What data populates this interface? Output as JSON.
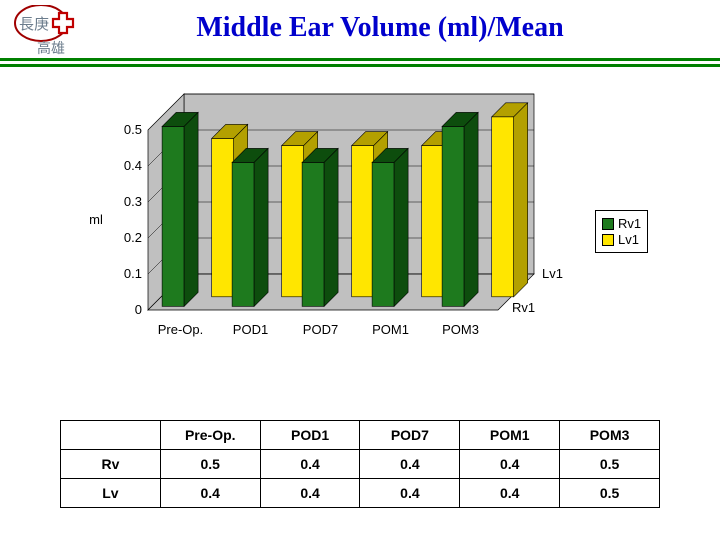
{
  "title": "Middle Ear Volume (ml)/Mean",
  "title_color": "#0000cc",
  "title_fontsize": 28,
  "divider_color": "#008000",
  "logo": {
    "cross_bg": "#ffffff",
    "cross_border": "#a00000",
    "plus_color": "#c00000",
    "text": "高雄",
    "text_color": "#6b7c8c",
    "brand_text": "長庚"
  },
  "chart": {
    "type": "3d-bar",
    "categories": [
      "Pre-Op.",
      "POD1",
      "POD7",
      "POM1",
      "POM3"
    ],
    "series": [
      {
        "name": "Rv1",
        "color": "#1e7a1e",
        "values": [
          0.5,
          0.4,
          0.4,
          0.4,
          0.5
        ]
      },
      {
        "name": "Lv1",
        "color": "#ffe600",
        "values": [
          0.44,
          0.42,
          0.42,
          0.42,
          0.5
        ]
      }
    ],
    "depth_labels": [
      "Lv1",
      "Rv1"
    ],
    "ylabel": "ml",
    "ylim": [
      0,
      0.5
    ],
    "ytick_step": 0.1,
    "yticks": [
      "0",
      "0.1",
      "0.2",
      "0.3",
      "0.4",
      "0.5"
    ],
    "label_fontsize": 13,
    "grid_color": "#000000",
    "background_color": "#c0c0c0",
    "floor_color": "#c0c0c0",
    "shade_dark_rv": "#0d4d0d",
    "shade_dark_lv": "#b3a000"
  },
  "legend": {
    "items": [
      {
        "label": "Rv1",
        "color": "#1e7a1e"
      },
      {
        "label": "Lv1",
        "color": "#ffe600"
      }
    ]
  },
  "table": {
    "columns": [
      "",
      "Pre-Op.",
      "POD1",
      "POD7",
      "POM1",
      "POM3"
    ],
    "rows": [
      [
        "Rv",
        "0.5",
        "0.4",
        "0.4",
        "0.4",
        "0.5"
      ],
      [
        "Lv",
        "0.4",
        "0.4",
        "0.4",
        "0.4",
        "0.5"
      ]
    ]
  }
}
